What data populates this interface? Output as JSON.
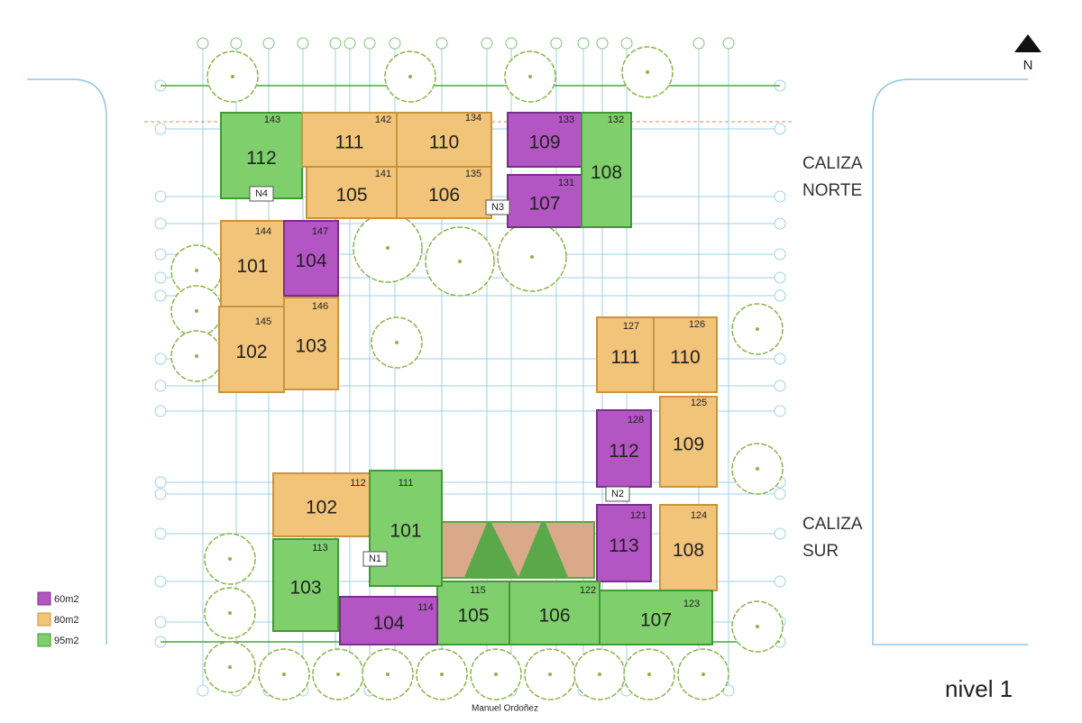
{
  "north": "N",
  "level": "nivel 1",
  "street": "Manuel Ordoñez",
  "buildings": [
    {
      "lines": [
        "CALIZA",
        "NORTE"
      ]
    },
    {
      "lines": [
        "CALIZA",
        "SUR"
      ]
    }
  ],
  "legend": [
    "60m2",
    "80m2",
    "95m2"
  ],
  "north_block": {
    "units": [
      "112",
      "111",
      "110",
      "105",
      "106",
      "109",
      "107",
      "108",
      "101",
      "104",
      "102",
      "103"
    ],
    "rooms": [
      "143",
      "142",
      "134",
      "141",
      "135",
      "133",
      "131",
      "132",
      "144",
      "147",
      "145",
      "146"
    ],
    "cores": [
      "N4",
      "N3"
    ]
  },
  "south_block": {
    "units": [
      "111",
      "110",
      "112",
      "109",
      "113",
      "108",
      "107",
      "106",
      "105",
      "104",
      "103",
      "102",
      "101"
    ],
    "rooms": [
      "127",
      "126",
      "128",
      "125",
      "121",
      "124",
      "123",
      "122",
      "115",
      "114",
      "113",
      "112",
      "111"
    ],
    "cores": [
      "N2",
      "N1"
    ]
  }
}
